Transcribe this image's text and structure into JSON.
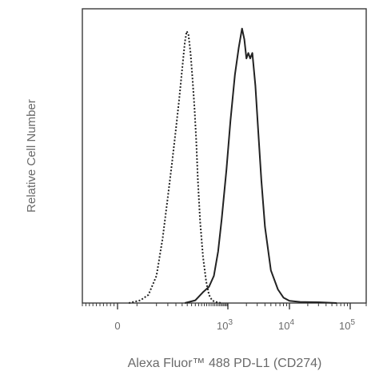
{
  "chart_data": {
    "type": "line",
    "title": "",
    "xlabel": "Alexa Fluor™ 488 PD-L1 (CD274)",
    "ylabel": "Relative Cell Number",
    "x_scale": "biexponential",
    "xlim": [
      -200,
      200000
    ],
    "ylim": [
      0,
      100
    ],
    "grid": false,
    "legend": "none",
    "x_ticks": [
      {
        "value": 0,
        "label": "0"
      },
      {
        "value": 1000,
        "label": "10",
        "exp": "3"
      },
      {
        "value": 10000,
        "label": "10",
        "exp": "4"
      },
      {
        "value": 100000,
        "label": "10",
        "exp": "5"
      }
    ],
    "series": [
      {
        "style": "dotted",
        "color": "#222222",
        "x": [
          10,
          25,
          40,
          60,
          80,
          100,
          120,
          140,
          160,
          180,
          200,
          215,
          230,
          250,
          270,
          290,
          310,
          330,
          360,
          400,
          450,
          500,
          560,
          620,
          700,
          800
        ],
        "y": [
          0,
          1,
          3,
          10,
          24,
          39,
          52,
          64,
          75,
          86,
          96,
          100,
          99,
          92,
          82,
          72,
          60,
          45,
          30,
          17,
          8,
          3,
          1,
          0.5,
          0.2,
          0
        ]
      },
      {
        "style": "solid",
        "color": "#222222",
        "x": [
          200,
          300,
          400,
          500,
          600,
          700,
          800,
          950,
          1100,
          1300,
          1500,
          1700,
          1850,
          2000,
          2150,
          2300,
          2500,
          2800,
          3100,
          3500,
          4000,
          5000,
          6500,
          8000,
          10000,
          15000,
          30000,
          60000
        ],
        "y": [
          0,
          1,
          4,
          6,
          10,
          19,
          31,
          49,
          67,
          84,
          94,
          101,
          97,
          90,
          92,
          90,
          92,
          80,
          64,
          45,
          28,
          12,
          5,
          2,
          0.8,
          0.4,
          0.3,
          0
        ]
      }
    ]
  }
}
